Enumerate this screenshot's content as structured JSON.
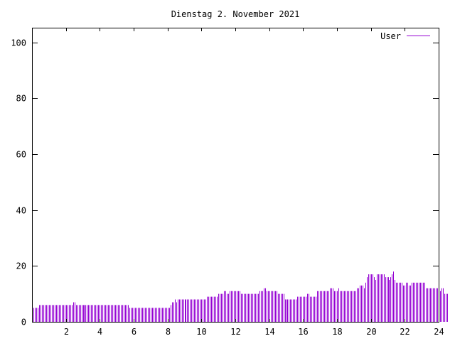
{
  "chart_data": {
    "type": "bar",
    "title": "Dienstag 2. November 2021",
    "xlabel": "",
    "ylabel": "",
    "xlim": [
      0,
      24
    ],
    "ylim": [
      0,
      105
    ],
    "x_ticks": [
      2,
      4,
      6,
      8,
      10,
      12,
      14,
      16,
      18,
      20,
      22,
      24
    ],
    "y_ticks": [
      0,
      20,
      40,
      60,
      80,
      100
    ],
    "grid": false,
    "legend": "top-right",
    "series": [
      {
        "name": "User",
        "color": "#9400d3",
        "step_minutes": 5,
        "values": [
          5,
          5,
          5,
          5,
          5,
          6,
          6,
          6,
          6,
          6,
          6,
          6,
          6,
          6,
          6,
          6,
          6,
          6,
          6,
          6,
          6,
          6,
          6,
          6,
          6,
          6,
          6,
          6,
          6,
          7,
          7,
          6,
          6,
          6,
          6,
          6,
          6,
          6,
          6,
          6,
          6,
          6,
          6,
          6,
          6,
          6,
          6,
          6,
          6,
          6,
          6,
          6,
          6,
          6,
          6,
          6,
          6,
          6,
          6,
          6,
          6,
          6,
          6,
          6,
          6,
          6,
          6,
          6,
          6,
          5,
          5,
          5,
          5,
          5,
          5,
          5,
          5,
          5,
          5,
          5,
          5,
          5,
          5,
          5,
          5,
          5,
          5,
          5,
          5,
          5,
          5,
          5,
          5,
          5,
          5,
          5,
          5,
          5,
          6,
          7,
          7,
          8,
          7,
          8,
          8,
          8,
          8,
          8,
          8,
          8,
          8,
          8,
          8,
          8,
          8,
          8,
          8,
          8,
          8,
          8,
          8,
          8,
          8,
          8,
          9,
          9,
          9,
          9,
          9,
          9,
          9,
          9,
          10,
          10,
          10,
          10,
          11,
          11,
          10,
          10,
          11,
          11,
          11,
          11,
          11,
          11,
          11,
          11,
          10,
          10,
          10,
          10,
          10,
          10,
          10,
          10,
          10,
          10,
          10,
          10,
          10,
          11,
          11,
          11,
          12,
          12,
          11,
          11,
          11,
          11,
          11,
          11,
          11,
          11,
          10,
          10,
          10,
          10,
          10,
          8,
          8,
          8,
          8,
          8,
          8,
          8,
          8,
          8,
          9,
          9,
          9,
          9,
          9,
          9,
          9,
          10,
          10,
          9,
          9,
          9,
          9,
          9,
          11,
          11,
          11,
          11,
          11,
          11,
          11,
          11,
          11,
          12,
          12,
          12,
          11,
          11,
          11,
          12,
          11,
          11,
          11,
          11,
          11,
          11,
          11,
          11,
          11,
          11,
          11,
          11,
          12,
          12,
          13,
          13,
          13,
          12,
          14,
          16,
          17,
          17,
          17,
          17,
          16,
          15,
          17,
          17,
          17,
          17,
          17,
          17,
          16,
          16,
          16,
          15,
          16,
          17,
          18,
          15,
          14,
          14,
          14,
          14,
          14,
          13,
          13,
          14,
          14,
          13,
          13,
          14,
          14,
          14,
          14,
          14,
          14,
          14,
          14,
          14,
          14,
          12,
          12,
          12,
          12,
          12,
          12,
          12,
          12,
          12,
          11,
          11,
          12,
          12,
          10,
          10,
          10
        ]
      }
    ]
  }
}
